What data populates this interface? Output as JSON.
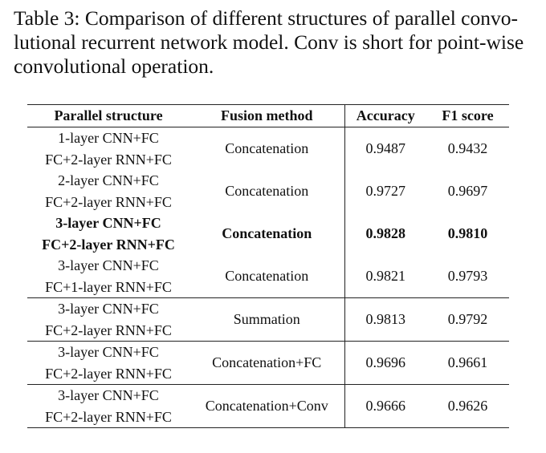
{
  "caption": {
    "lines": [
      "Table 3: Comparison of different structures of parallel convo-",
      "lutional recurrent network model. Conv is short for point-wise",
      "convolutional operation."
    ]
  },
  "table": {
    "headers": [
      "Parallel structure",
      "Fusion method",
      "Accuracy",
      "F1 score"
    ],
    "rows": [
      {
        "structure": [
          "1-layer CNN+FC",
          "FC+2-layer RNN+FC"
        ],
        "fusion": "Concatenation",
        "accuracy": "0.9487",
        "f1": "0.9432"
      },
      {
        "structure": [
          "2-layer CNN+FC",
          "FC+2-layer RNN+FC"
        ],
        "fusion": "Concatenation",
        "accuracy": "0.9727",
        "f1": "0.9697"
      },
      {
        "structure": [
          "3-layer CNN+FC",
          "FC+2-layer RNN+FC"
        ],
        "fusion": "Concatenation",
        "accuracy": "0.9828",
        "f1": "0.9810"
      },
      {
        "structure": [
          "3-layer CNN+FC",
          "FC+1-layer RNN+FC"
        ],
        "fusion": "Concatenation",
        "accuracy": "0.9821",
        "f1": "0.9793"
      },
      {
        "structure": [
          "3-layer CNN+FC",
          "FC+2-layer RNN+FC"
        ],
        "fusion": "Summation",
        "accuracy": "0.9813",
        "f1": "0.9792"
      },
      {
        "structure": [
          "3-layer CNN+FC",
          "FC+2-layer RNN+FC"
        ],
        "fusion": "Concatenation+FC",
        "accuracy": "0.9696",
        "f1": "0.9661"
      },
      {
        "structure": [
          "3-layer CNN+FC",
          "FC+2-layer RNN+FC"
        ],
        "fusion": "Concatenation+Conv",
        "accuracy": "0.9666",
        "f1": "0.9626"
      }
    ]
  }
}
